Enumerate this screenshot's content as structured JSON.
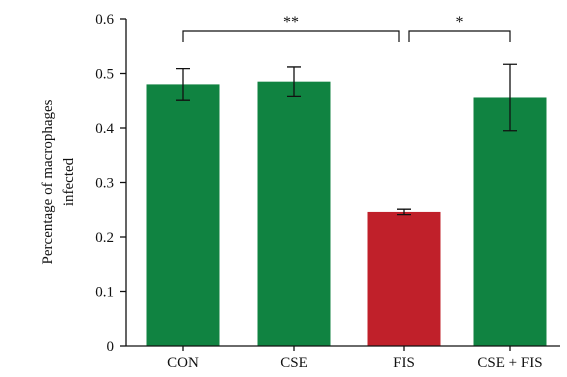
{
  "chart_data": {
    "type": "bar",
    "categories": [
      "CON",
      "CSE",
      "FIS",
      "CSE + FIS"
    ],
    "values": [
      0.48,
      0.485,
      0.246,
      0.456
    ],
    "errors": [
      0.029,
      0.027,
      0.005,
      0.061
    ],
    "colors": [
      "#108341",
      "#108341",
      "#c0202a",
      "#108341"
    ],
    "ylabel_lines": [
      "Percentage of macrophages",
      "infected"
    ],
    "xlabel": "",
    "ylim": [
      0,
      0.6
    ],
    "yticks": [
      "0",
      "0.1",
      "0.2",
      "0.3",
      "0.4",
      "0.5",
      "0.6"
    ],
    "grid": false,
    "significance": [
      {
        "from": 0,
        "to": 2,
        "label": "**"
      },
      {
        "from": 2,
        "to": 3,
        "label": "*"
      }
    ]
  }
}
